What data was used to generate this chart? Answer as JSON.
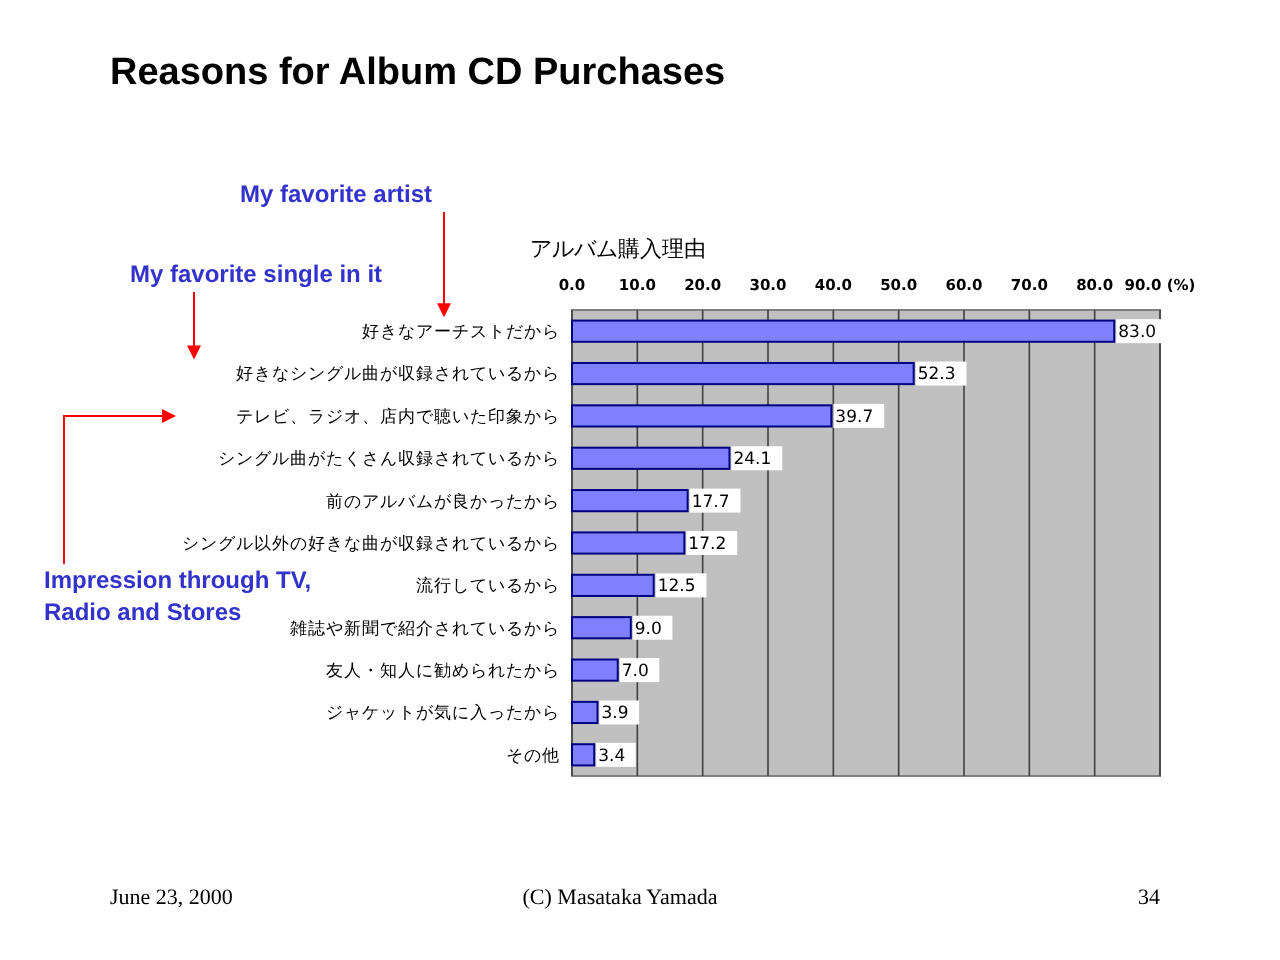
{
  "chart_data": {
    "type": "bar",
    "orientation": "horizontal",
    "title": "Reasons for Album CD Purchases",
    "subtitle": "アルバム購入理由",
    "categories": [
      "好きなアーチストだから",
      "好きなシングル曲が収録されているから",
      "テレビ、ラジオ、店内で聴いた印象から",
      "シングル曲がたくさん収録されているから",
      "前のアルバムが良かったから",
      "シングル以外の好きな曲が収録されているから",
      "流行しているから",
      "雑誌や新聞で紹介されているから",
      "友人・知人に勧められたから",
      "ジャケットが気に入ったから",
      "その他"
    ],
    "values": [
      83.0,
      52.3,
      39.7,
      24.1,
      17.7,
      17.2,
      12.5,
      9.0,
      7.0,
      3.9,
      3.4
    ],
    "value_labels": [
      "83.0",
      "52.3",
      "39.7",
      "24.1",
      "17.7",
      "17.2",
      "12.5",
      "9.0",
      "7.0",
      "3.9",
      "3.4"
    ],
    "color": "#8080ff",
    "xlim": [
      0,
      90
    ],
    "xticks": [
      {
        "value": 0,
        "label": "0.0"
      },
      {
        "value": 10,
        "label": "10.0"
      },
      {
        "value": 20,
        "label": "20.0"
      },
      {
        "value": 30,
        "label": "30.0"
      },
      {
        "value": 40,
        "label": "40.0"
      },
      {
        "value": 50,
        "label": "50.0"
      },
      {
        "value": 60,
        "label": "60.0"
      },
      {
        "value": 70,
        "label": "70.0"
      },
      {
        "value": 80,
        "label": "80.0"
      },
      {
        "value": 90,
        "label": "90.0 (%)"
      }
    ],
    "grid": "x",
    "annotations": [
      "My favorite artist",
      "My favorite single in it",
      "Impression through TV,\nRadio and Stores",
      "June 23, 2000",
      "(C) Masataka Yamada",
      "34"
    ]
  }
}
